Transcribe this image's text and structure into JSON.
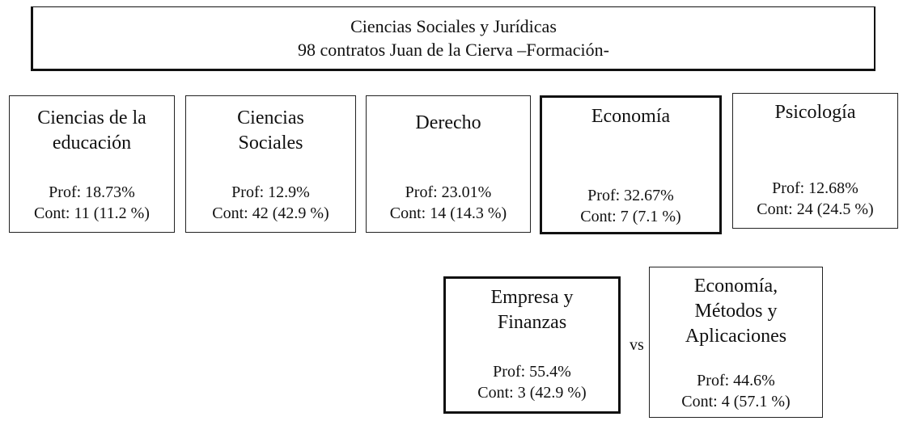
{
  "header": {
    "lines": [
      "Ciencias Sociales y Jurídicas",
      "98 contratos Juan de la Cierva –Formación-"
    ]
  },
  "areas": [
    {
      "label_lines": [
        "Ciencias de la",
        "educación"
      ],
      "prof": "Prof: 18.73%",
      "cont": "Cont: 11 (11.2 %)",
      "emphasized": false
    },
    {
      "label_lines": [
        "Ciencias",
        "Sociales"
      ],
      "prof": "Prof: 12.9%",
      "cont": "Cont: 42 (42.9 %)",
      "emphasized": false
    },
    {
      "label_lines": [
        "Derecho"
      ],
      "prof": "Prof: 23.01%",
      "cont": "Cont: 14 (14.3 %)",
      "emphasized": false
    },
    {
      "label_lines": [
        "Economía"
      ],
      "prof": "Prof: 32.67%",
      "cont": "Cont: 7 (7.1 %)",
      "emphasized": true
    },
    {
      "label_lines": [
        "Psicología"
      ],
      "prof": "Prof: 12.68%",
      "cont": "Cont: 24 (24.5 %)",
      "emphasized": false
    }
  ],
  "comparison": {
    "separator": "vs",
    "boxes": [
      {
        "label_lines": [
          "Empresa y",
          "Finanzas"
        ],
        "prof": "Prof: 55.4%",
        "cont": "Cont: 3 (42.9 %)",
        "emphasized": true
      },
      {
        "label_lines": [
          "Economía,",
          "Métodos y",
          "Aplicaciones"
        ],
        "prof": "Prof: 44.6%",
        "cont": "Cont: 4 (57.1 %)",
        "emphasized": false
      }
    ]
  }
}
